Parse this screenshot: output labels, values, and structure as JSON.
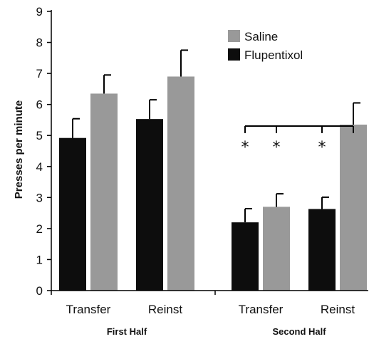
{
  "chart_data": {
    "type": "bar",
    "ylabel": "Presses per minute",
    "xlabel": "",
    "ylim": [
      0,
      9
    ],
    "yticks": [
      0,
      1,
      2,
      3,
      4,
      5,
      6,
      7,
      8,
      9
    ],
    "grid": false,
    "legend_position": "top-right",
    "groups": [
      {
        "label": "First Half",
        "categories": [
          "Transfer",
          "Reinst"
        ]
      },
      {
        "label": "Second Half",
        "categories": [
          "Transfer",
          "Reinst"
        ]
      }
    ],
    "series": [
      {
        "name": "Saline",
        "color": "#999999",
        "values": [
          6.35,
          6.9,
          2.7,
          5.35
        ],
        "errors": [
          0.6,
          0.85,
          0.42,
          0.7
        ]
      },
      {
        "name": "Flupentixol",
        "color": "#0d0d0d",
        "values": [
          4.92,
          5.53,
          2.2,
          2.63
        ],
        "errors": [
          0.62,
          0.62,
          0.44,
          0.38
        ]
      }
    ],
    "annotations": {
      "significance_marker": "*",
      "marker_count": 3
    }
  }
}
